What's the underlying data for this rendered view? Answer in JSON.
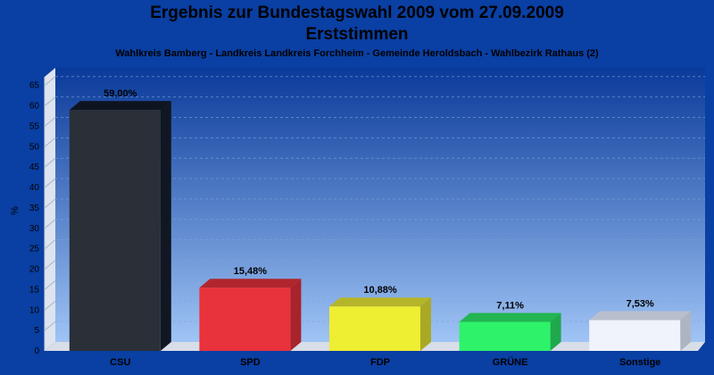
{
  "chart_data": {
    "type": "bar",
    "title": "Ergebnis zur Bundestagswahl 2009 vom 27.09.2009",
    "subtitle": "Erststimmen",
    "caption": "Wahlkreis Bamberg - Landkreis Landkreis Forchheim - Gemeinde Heroldsbach - Wahlbezirk Rathaus (2)",
    "ylabel": "%",
    "xlabel": "",
    "ylim": [
      0,
      68
    ],
    "yticks": [
      "0",
      "5",
      "10",
      "15",
      "20",
      "25",
      "30",
      "35",
      "40",
      "45",
      "50",
      "55",
      "60",
      "65"
    ],
    "grid": true,
    "categories": [
      "CSU",
      "SPD",
      "FDP",
      "GRÜNE",
      "Sonstige"
    ],
    "values": [
      59.0,
      15.48,
      10.88,
      7.11,
      7.53
    ],
    "value_labels": [
      "59,00%",
      "15,48%",
      "10,88%",
      "7,11%",
      "7,53%"
    ],
    "colors": {
      "front": [
        "#2a2f38",
        "#e8323c",
        "#eeee33",
        "#2ef26a",
        "#f0f3fb"
      ],
      "top": [
        "#0f1520",
        "#b0262e",
        "#b5b52a",
        "#22b552",
        "#b9bfcc"
      ],
      "side": [
        "#111722",
        "#a8232b",
        "#a9a925",
        "#1fa84c",
        "#aeb4c2"
      ]
    }
  }
}
